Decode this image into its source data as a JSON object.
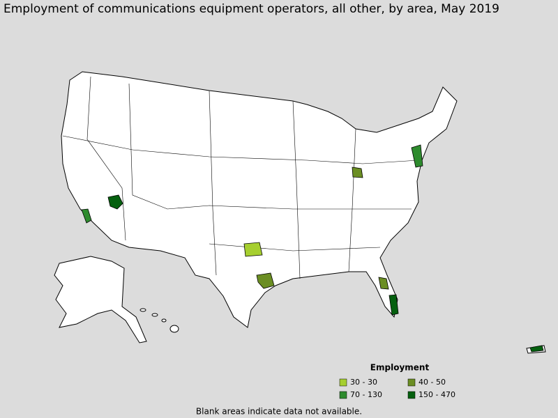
{
  "title": "Employment of communications equipment operators, all other, by area, May 2019",
  "legend": {
    "title": "Employment",
    "items": [
      {
        "label": "30 - 30",
        "color": "#a6cf2f"
      },
      {
        "label": "40 - 50",
        "color": "#6b8e23"
      },
      {
        "label": "70 - 130",
        "color": "#2e8b2e"
      },
      {
        "label": "150 - 470",
        "color": "#05600f"
      }
    ]
  },
  "footnote": "Blank areas indicate data not available."
}
